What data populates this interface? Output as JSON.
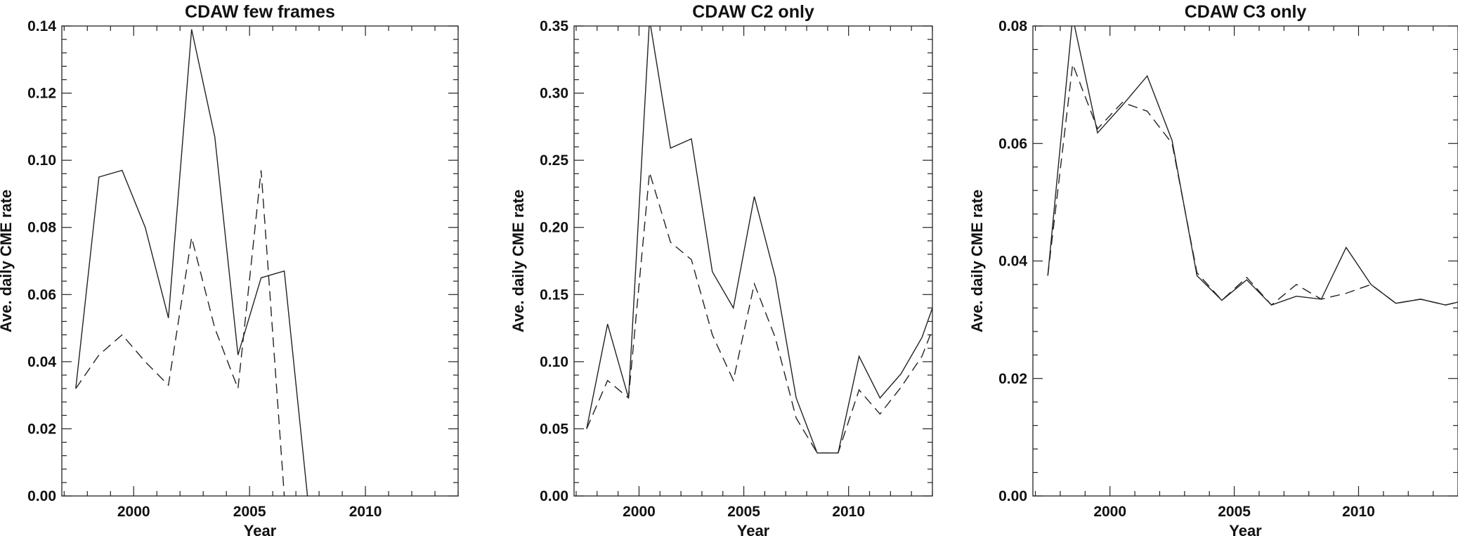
{
  "chart_data": [
    {
      "type": "line",
      "title": "CDAW few frames",
      "xlabel": "Year",
      "ylabel": "Ave. daily CME rate",
      "xlim": [
        1996.9,
        2014.0
      ],
      "ylim": [
        0.0,
        0.14
      ],
      "xticks": [
        2000,
        2005,
        2010
      ],
      "yticks": [
        0.0,
        0.02,
        0.04,
        0.06,
        0.08,
        0.1,
        0.12,
        0.14
      ],
      "ytick_labels": [
        "0.00",
        "0.02",
        "0.04",
        "0.06",
        "0.08",
        "0.10",
        "0.12",
        "0.14"
      ],
      "series": [
        {
          "name": "solid",
          "style": "solid",
          "x": [
            1997.5,
            1998.5,
            1999.5,
            2000.5,
            2001.5,
            2002.5,
            2003.5,
            2004.5,
            2005.5,
            2006.5,
            2007.5
          ],
          "y": [
            0.032,
            0.095,
            0.097,
            0.08,
            0.053,
            0.139,
            0.107,
            0.042,
            0.065,
            0.067,
            0.0
          ]
        },
        {
          "name": "dashed",
          "style": "dashed",
          "x": [
            1997.5,
            1998.5,
            1999.5,
            2000.5,
            2001.5,
            2002.5,
            2003.5,
            2004.5,
            2005.5,
            2006.5
          ],
          "y": [
            0.032,
            0.042,
            0.048,
            0.04,
            0.033,
            0.077,
            0.05,
            0.032,
            0.097,
            0.0
          ]
        }
      ]
    },
    {
      "type": "line",
      "title": "CDAW C2 only",
      "xlabel": "Year",
      "ylabel": "Ave. daily CME rate",
      "xlim": [
        1996.9,
        2014.0
      ],
      "ylim": [
        0.0,
        0.35
      ],
      "xticks": [
        2000,
        2005,
        2010
      ],
      "yticks": [
        0.0,
        0.05,
        0.1,
        0.15,
        0.2,
        0.25,
        0.3,
        0.35
      ],
      "ytick_labels": [
        "0.00",
        "0.05",
        "0.10",
        "0.15",
        "0.20",
        "0.25",
        "0.30",
        "0.35"
      ],
      "series": [
        {
          "name": "solid",
          "style": "solid",
          "x": [
            1997.5,
            1998.5,
            1999.5,
            2000.5,
            2001.5,
            2002.5,
            2003.5,
            2004.5,
            2005.5,
            2006.5,
            2007.5,
            2008.5,
            2009.5,
            2010.5,
            2011.5,
            2012.5,
            2013.5,
            2014.0
          ],
          "y": [
            0.05,
            0.128,
            0.073,
            0.355,
            0.259,
            0.266,
            0.167,
            0.14,
            0.223,
            0.163,
            0.073,
            0.032,
            0.032,
            0.104,
            0.073,
            0.091,
            0.118,
            0.14
          ]
        },
        {
          "name": "dashed",
          "style": "dashed",
          "x": [
            1997.5,
            1998.5,
            1999.5,
            2000.5,
            2001.5,
            2002.5,
            2003.5,
            2004.5,
            2005.5,
            2006.5,
            2007.5,
            2008.5,
            2009.5,
            2010.5,
            2011.5,
            2012.5,
            2013.5,
            2014.0
          ],
          "y": [
            0.05,
            0.086,
            0.073,
            0.241,
            0.189,
            0.176,
            0.12,
            0.086,
            0.158,
            0.118,
            0.058,
            0.032,
            0.032,
            0.079,
            0.061,
            0.081,
            0.104,
            0.124
          ]
        }
      ]
    },
    {
      "type": "line",
      "title": "CDAW C3 only",
      "xlabel": "Year",
      "ylabel": "Ave. daily CME rate",
      "xlim": [
        1996.9,
        2014.0
      ],
      "ylim": [
        0.0,
        0.08
      ],
      "xticks": [
        2000,
        2005,
        2010
      ],
      "yticks": [
        0.0,
        0.02,
        0.04,
        0.06,
        0.08
      ],
      "ytick_labels": [
        "0.00",
        "0.02",
        "0.04",
        "0.06",
        "0.08"
      ],
      "series": [
        {
          "name": "solid",
          "style": "solid",
          "x": [
            1997.5,
            1998.5,
            1999.5,
            2000.5,
            2001.5,
            2002.5,
            2003.5,
            2004.5,
            2005.5,
            2006.5,
            2007.5,
            2008.5,
            2009.5,
            2010.5,
            2011.5,
            2012.5,
            2013.5,
            2014.0
          ],
          "y": [
            0.0375,
            0.0815,
            0.0618,
            0.0665,
            0.0715,
            0.0605,
            0.0375,
            0.0333,
            0.0368,
            0.0325,
            0.034,
            0.0335,
            0.0423,
            0.036,
            0.0328,
            0.0335,
            0.0325,
            0.033
          ]
        },
        {
          "name": "dashed",
          "style": "dashed",
          "x": [
            1997.5,
            1998.5,
            1999.5,
            2000.5,
            2001.5,
            2002.5,
            2003.5,
            2004.5,
            2005.5,
            2006.5,
            2007.5,
            2008.5,
            2009.5,
            2010.5,
            2011.5,
            2012.5,
            2013.5,
            2014.0
          ],
          "y": [
            0.0375,
            0.0735,
            0.0625,
            0.067,
            0.0655,
            0.06,
            0.038,
            0.0333,
            0.0372,
            0.0325,
            0.036,
            0.0335,
            0.0345,
            0.036,
            0.0328,
            0.0335,
            0.0325,
            0.033
          ]
        }
      ]
    }
  ]
}
